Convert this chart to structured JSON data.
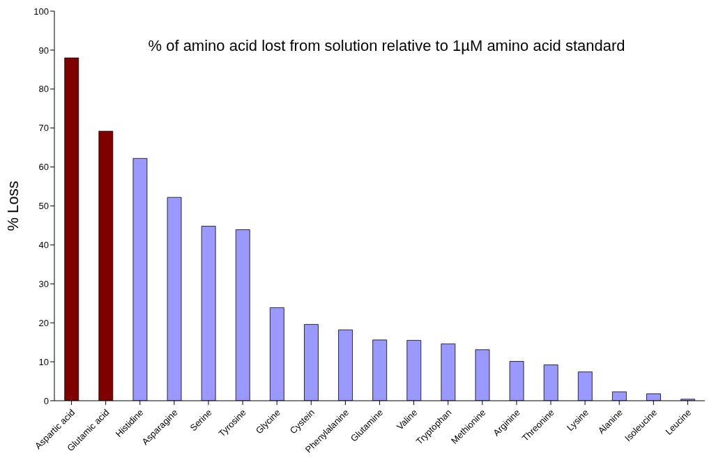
{
  "chart_data": {
    "type": "bar",
    "title": "% of amino acid lost from solution relative to 1µM amino acid standard",
    "ylabel": "% Loss",
    "categories": [
      "Aspartic acid",
      "Glutamic acid",
      "Histidine",
      "Asparagine",
      "Serine",
      "Tyrosine",
      "Glycine",
      "Cystein",
      "Phenylalanine",
      "Glutamine",
      "Valine",
      "Tryptophan",
      "Methionine",
      "Arginine",
      "Threonine",
      "Lysine",
      "Alanine",
      "Isoleucine",
      "Leucine"
    ],
    "values": [
      88,
      69.2,
      62.2,
      52.2,
      44.8,
      43.9,
      23.9,
      19.6,
      18.2,
      15.6,
      15.5,
      14.6,
      13.1,
      10.1,
      9.2,
      7.4,
      2.3,
      1.8,
      0.4
    ],
    "colors": [
      "#800000",
      "#800000",
      "#9999ff",
      "#9999ff",
      "#9999ff",
      "#9999ff",
      "#9999ff",
      "#9999ff",
      "#9999ff",
      "#9999ff",
      "#9999ff",
      "#9999ff",
      "#9999ff",
      "#9999ff",
      "#9999ff",
      "#9999ff",
      "#9999ff",
      "#9999ff",
      "#9999ff"
    ],
    "ylim": [
      0,
      100
    ],
    "yticks": [
      0,
      10,
      20,
      30,
      40,
      50,
      60,
      70,
      80,
      90,
      100
    ],
    "grid": false,
    "legend": false
  }
}
